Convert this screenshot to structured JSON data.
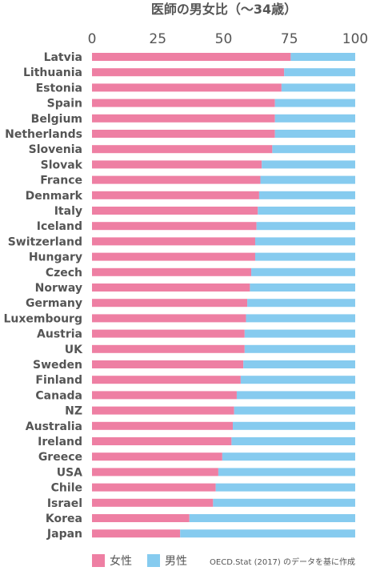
{
  "chart_data": {
    "type": "bar",
    "orientation": "horizontal",
    "stacked": true,
    "title": "医師の男女比（～34歳）",
    "xlim": [
      0,
      100
    ],
    "xticks": [
      0,
      25,
      50,
      75,
      100
    ],
    "categories": [
      "Latvia",
      "Lithuania",
      "Estonia",
      "Spain",
      "Belgium",
      "Netherlands",
      "Slovenia",
      "Slovak",
      "France",
      "Denmark",
      "Italy",
      "Iceland",
      "Switzerland",
      "Hungary",
      "Czech",
      "Norway",
      "Germany",
      "Luxembourg",
      "Austria",
      "UK",
      "Sweden",
      "Finland",
      "Canada",
      "NZ",
      "Australia",
      "Ireland",
      "Greece",
      "USA",
      "Chile",
      "Israel",
      "Korea",
      "Japan"
    ],
    "highlight_category": "Japan",
    "series": [
      {
        "name": "女性",
        "color": "#ee7fa3",
        "values": [
          75.5,
          73,
          72,
          69.5,
          69.5,
          69.5,
          68.5,
          64.5,
          64,
          63.5,
          63,
          62.5,
          62,
          62,
          60.5,
          60,
          59,
          58.5,
          58,
          58,
          57.5,
          56.5,
          55,
          54,
          53.5,
          53,
          49.5,
          48,
          47,
          46,
          37,
          33.5
        ]
      },
      {
        "name": "男性",
        "color": "#86cbef",
        "values": [
          24.5,
          27,
          28,
          30.5,
          30.5,
          30.5,
          31.5,
          35.5,
          36,
          36.5,
          37,
          37.5,
          38,
          38,
          39.5,
          40,
          41,
          41.5,
          42,
          42,
          42.5,
          43.5,
          45,
          46,
          46.5,
          47,
          50.5,
          52,
          53,
          54,
          63,
          66.5
        ]
      }
    ],
    "legend_position": "bottom-left",
    "source_note": "OECD.Stat (2017) のデータを基に作成",
    "grid": false,
    "highlight_color": "#ee6f8a",
    "text_color": "#555555"
  }
}
